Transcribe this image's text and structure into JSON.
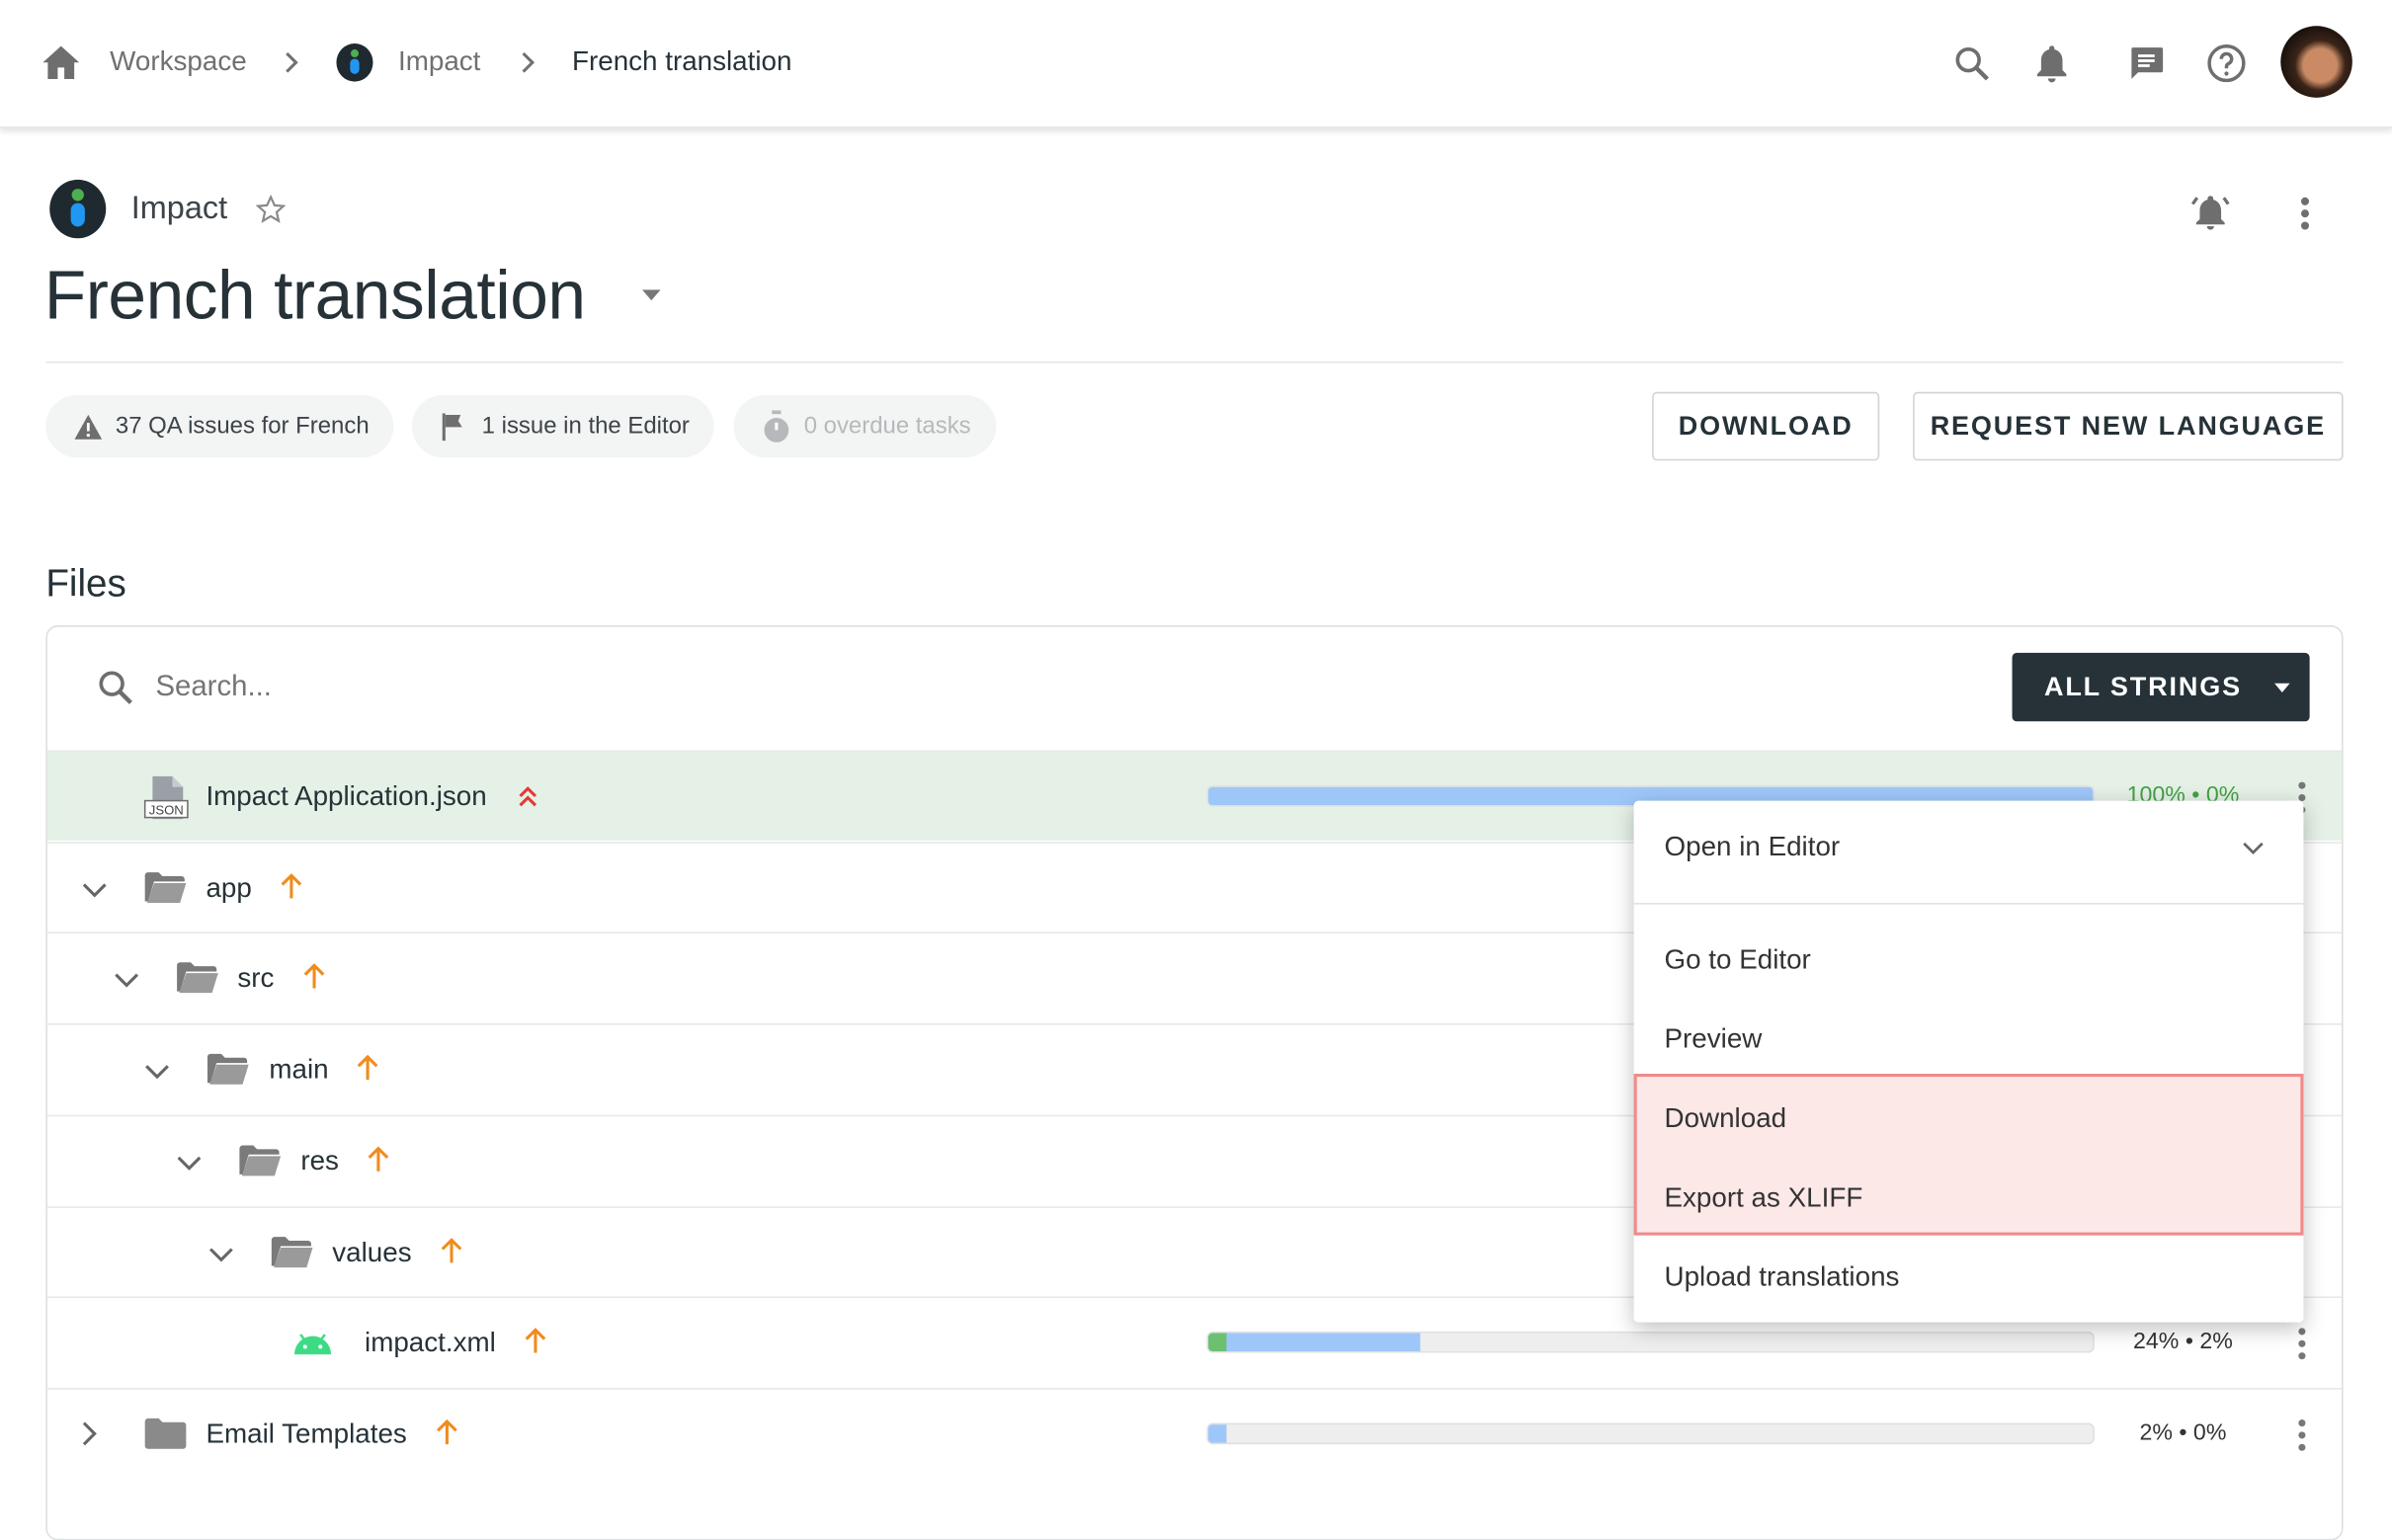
{
  "breadcrumb": {
    "items": [
      "Workspace",
      "Impact",
      "French translation"
    ]
  },
  "header_icons": [
    "search-icon",
    "bell-icon",
    "chat-icon",
    "help-icon",
    "avatar"
  ],
  "project": {
    "name": "Impact",
    "title": "French translation"
  },
  "chips": [
    {
      "label": "37 QA issues for French",
      "icon": "warning-icon"
    },
    {
      "label": "1 issue in the Editor",
      "icon": "flag-icon"
    },
    {
      "label": "0 overdue tasks",
      "icon": "timer-icon",
      "disabled": true
    }
  ],
  "actions": {
    "download": "DOWNLOAD",
    "request": "REQUEST NEW LANGUAGE"
  },
  "files": {
    "heading": "Files",
    "search_placeholder": "Search...",
    "filter_label": "ALL STRINGS",
    "rows": [
      {
        "name": "Impact Application.json",
        "type": "json",
        "level": 0,
        "progress_translated": 100,
        "progress_approved": 0,
        "pct": "100% • 0%",
        "selected": true
      },
      {
        "name": "app",
        "type": "folder",
        "level": 0,
        "expanded": true
      },
      {
        "name": "src",
        "type": "folder",
        "level": 1,
        "expanded": true
      },
      {
        "name": "main",
        "type": "folder",
        "level": 2,
        "expanded": true
      },
      {
        "name": "res",
        "type": "folder",
        "level": 3,
        "expanded": true
      },
      {
        "name": "values",
        "type": "folder",
        "level": 4,
        "expanded": true
      },
      {
        "name": "impact.xml",
        "type": "android",
        "level": 5,
        "progress_translated": 24,
        "progress_approved": 2,
        "pct": "24% • 2%"
      },
      {
        "name": "Email Templates",
        "type": "folder",
        "level": 0,
        "expanded": false,
        "progress_translated": 2,
        "progress_approved": 0,
        "pct": "2% • 0%"
      }
    ]
  },
  "context_menu": {
    "header": "Open in Editor",
    "items": [
      "Go to Editor",
      "Preview",
      "Download",
      "Export as XLIFF",
      "Upload translations"
    ],
    "highlighted": [
      "Download",
      "Export as XLIFF"
    ]
  },
  "colors": {
    "accent_dark": "#263238",
    "selected_row": "#e5f1e6",
    "progress_blue": "#9ec7f9",
    "progress_green": "#6cc070",
    "arrow_orange": "#f08c1e",
    "highlight_bg": "#fde8e8",
    "highlight_border": "#f08a8a"
  }
}
